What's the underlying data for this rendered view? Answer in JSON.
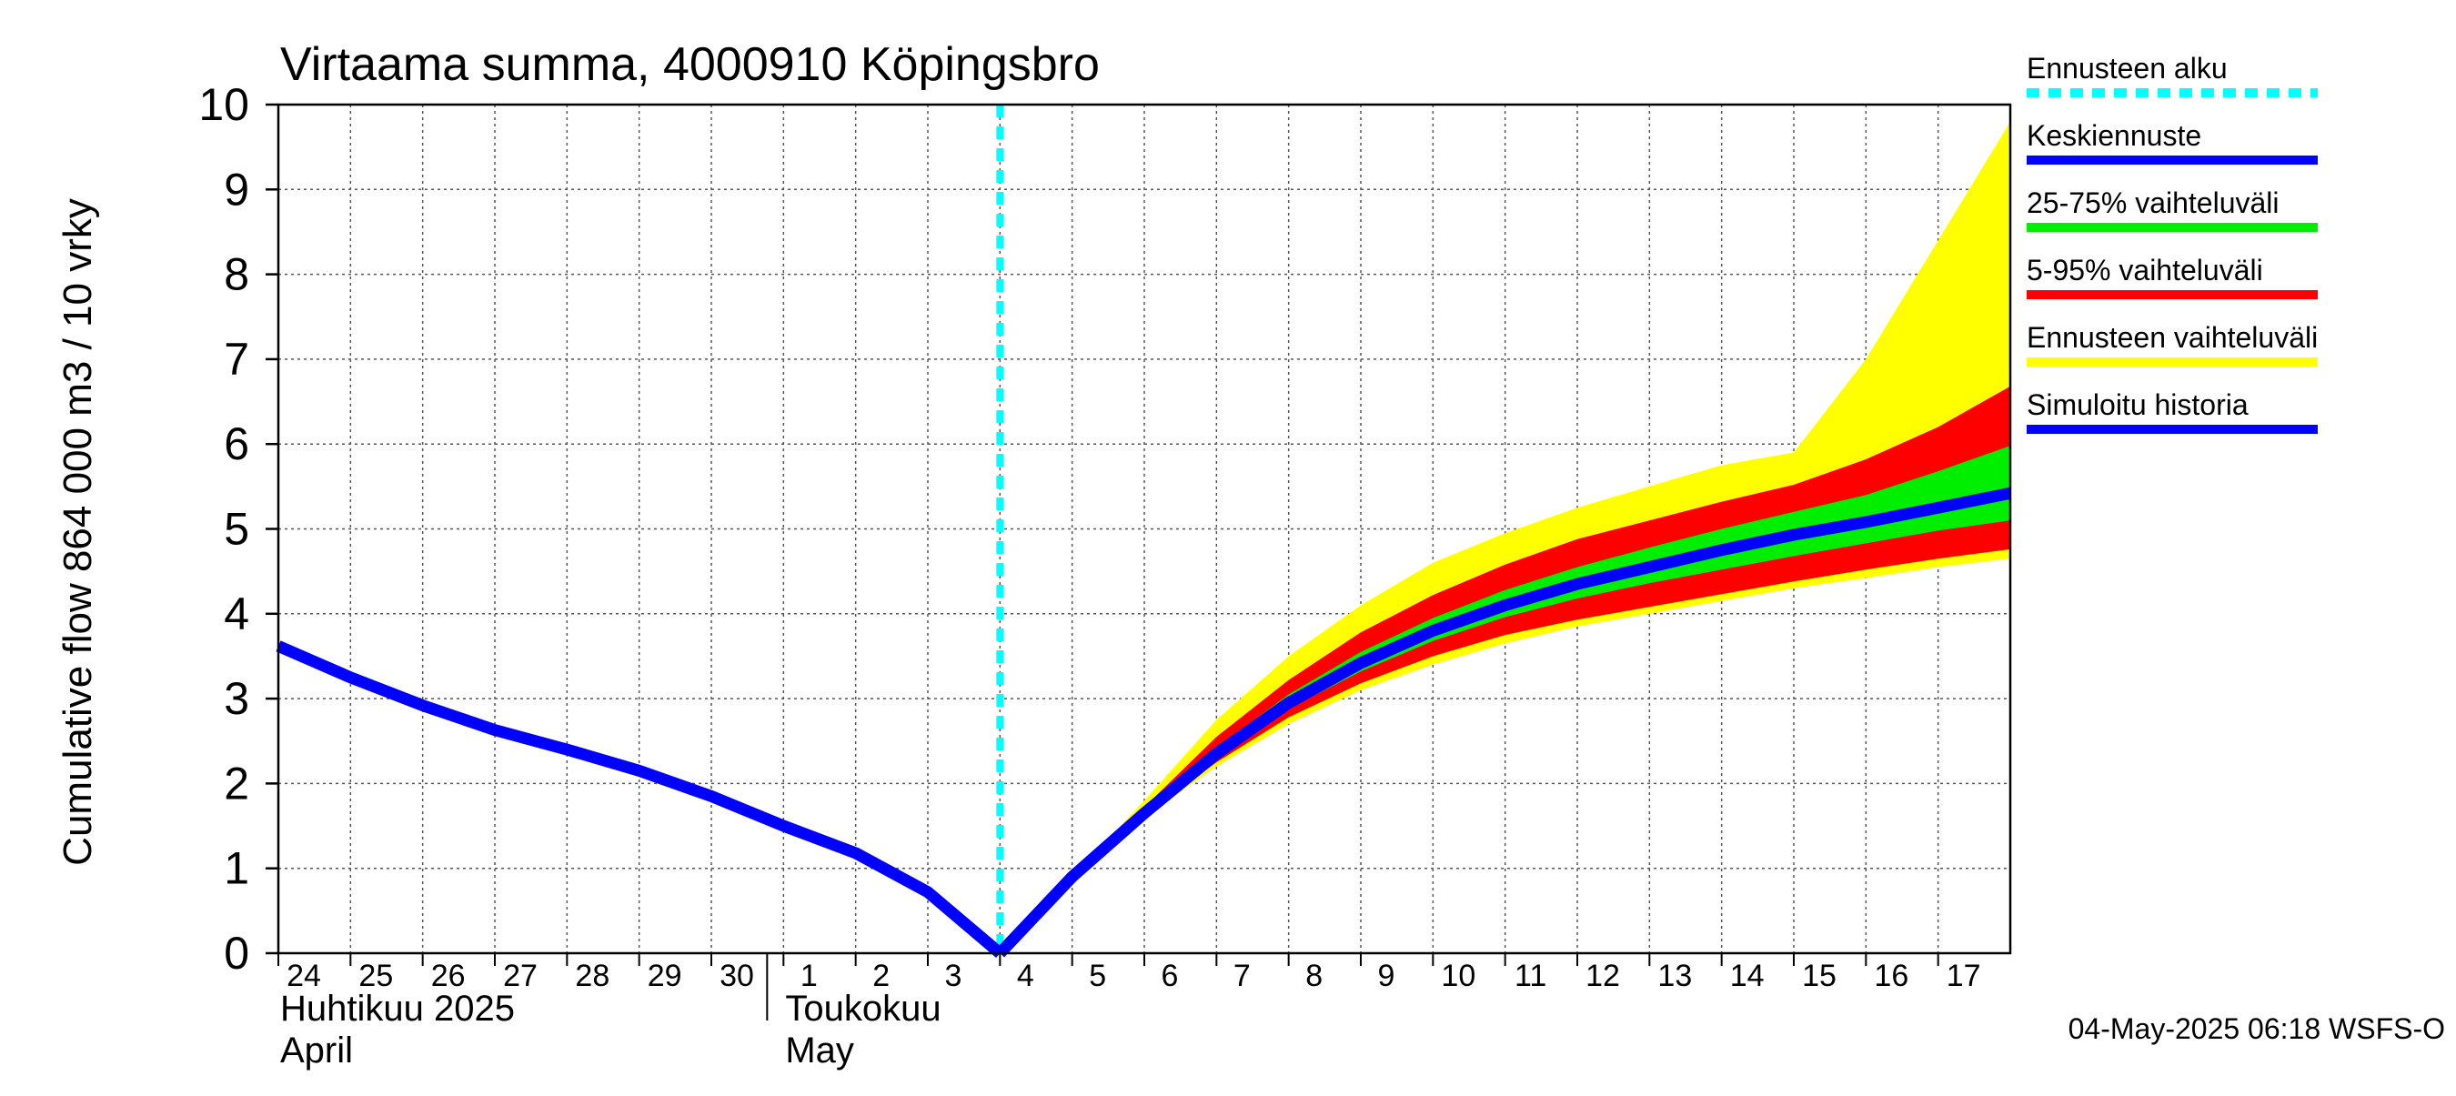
{
  "chart_data": {
    "type": "area",
    "title": "Virtaama summa, 4000910 Köpingsbro",
    "ylabel": "Cumulative flow    864 000 m3 / 10 vrky",
    "ylim": [
      0,
      10
    ],
    "yticks": [
      "0",
      "1",
      "2",
      "3",
      "4",
      "5",
      "6",
      "7",
      "8",
      "9",
      "10"
    ],
    "x_start_date": "2025-04-24",
    "x_end_date": "2025-05-18",
    "xticks": [
      {
        "date": "2025-04-24",
        "label": "24"
      },
      {
        "date": "2025-04-25",
        "label": "25"
      },
      {
        "date": "2025-04-26",
        "label": "26"
      },
      {
        "date": "2025-04-27",
        "label": "27"
      },
      {
        "date": "2025-04-28",
        "label": "28"
      },
      {
        "date": "2025-04-29",
        "label": "29"
      },
      {
        "date": "2025-04-30",
        "label": "30"
      },
      {
        "date": "2025-05-01",
        "label": "1"
      },
      {
        "date": "2025-05-02",
        "label": "2"
      },
      {
        "date": "2025-05-03",
        "label": "3"
      },
      {
        "date": "2025-05-04",
        "label": "4"
      },
      {
        "date": "2025-05-05",
        "label": "5"
      },
      {
        "date": "2025-05-06",
        "label": "6"
      },
      {
        "date": "2025-05-07",
        "label": "7"
      },
      {
        "date": "2025-05-08",
        "label": "8"
      },
      {
        "date": "2025-05-09",
        "label": "9"
      },
      {
        "date": "2025-05-10",
        "label": "10"
      },
      {
        "date": "2025-05-11",
        "label": "11"
      },
      {
        "date": "2025-05-12",
        "label": "12"
      },
      {
        "date": "2025-05-13",
        "label": "13"
      },
      {
        "date": "2025-05-14",
        "label": "14"
      },
      {
        "date": "2025-05-15",
        "label": "15"
      },
      {
        "date": "2025-05-16",
        "label": "16"
      },
      {
        "date": "2025-05-17",
        "label": "17"
      }
    ],
    "month_labels": [
      {
        "date": "2025-04-24",
        "line1": "Huhtikuu  2025",
        "line2": "April"
      },
      {
        "date": "2025-05-01",
        "line1": "Toukokuu",
        "line2": "May"
      }
    ],
    "forecast_start": "2025-05-04 00:00",
    "series": [
      {
        "name": "Simuloitu historia",
        "color": "#0000ff",
        "points": [
          [
            "2025-04-24 00:00",
            3.62
          ],
          [
            "2025-04-25 00:00",
            3.25
          ],
          [
            "2025-04-26 00:00",
            2.92
          ],
          [
            "2025-04-27 00:00",
            2.63
          ],
          [
            "2025-04-28 00:00",
            2.4
          ],
          [
            "2025-04-29 00:00",
            2.15
          ],
          [
            "2025-04-30 00:00",
            1.85
          ],
          [
            "2025-05-01 00:00",
            1.5
          ],
          [
            "2025-05-02 00:00",
            1.18
          ],
          [
            "2025-05-03 00:00",
            0.72
          ],
          [
            "2025-05-04 00:00",
            0.0
          ]
        ]
      },
      {
        "name": "Keskiennuste",
        "color": "#0000ff",
        "points": [
          [
            "2025-05-04 00:00",
            0.0
          ],
          [
            "2025-05-05 00:00",
            0.9
          ],
          [
            "2025-05-06 00:00",
            1.65
          ],
          [
            "2025-05-07 00:00",
            2.35
          ],
          [
            "2025-05-08 00:00",
            2.95
          ],
          [
            "2025-05-09 00:00",
            3.42
          ],
          [
            "2025-05-10 00:00",
            3.8
          ],
          [
            "2025-05-11 00:00",
            4.1
          ],
          [
            "2025-05-12 00:00",
            4.35
          ],
          [
            "2025-05-13 00:00",
            4.55
          ],
          [
            "2025-05-14 00:00",
            4.75
          ],
          [
            "2025-05-15 00:00",
            4.93
          ],
          [
            "2025-05-16 00:00",
            5.08
          ],
          [
            "2025-05-17 00:00",
            5.25
          ],
          [
            "2025-05-18 00:00",
            5.42
          ]
        ]
      }
    ],
    "bands": [
      {
        "name": "Ennusteen vaihteluväli",
        "color": "#ffff00",
        "x": [
          "2025-05-04 00:00",
          "2025-05-05 00:00",
          "2025-05-06 00:00",
          "2025-05-07 00:00",
          "2025-05-08 00:00",
          "2025-05-09 00:00",
          "2025-05-10 00:00",
          "2025-05-11 00:00",
          "2025-05-12 00:00",
          "2025-05-13 00:00",
          "2025-05-14 00:00",
          "2025-05-15 00:00",
          "2025-05-16 00:00",
          "2025-05-17 00:00",
          "2025-05-18 00:00"
        ],
        "low": [
          0.0,
          0.9,
          1.6,
          2.2,
          2.7,
          3.1,
          3.4,
          3.65,
          3.85,
          4.0,
          4.15,
          4.3,
          4.42,
          4.55,
          4.65
        ],
        "high": [
          0.0,
          0.9,
          1.8,
          2.75,
          3.5,
          4.1,
          4.6,
          4.95,
          5.25,
          5.5,
          5.75,
          5.9,
          7.0,
          8.4,
          9.8
        ]
      },
      {
        "name": "5-95% vaihteluväli",
        "color": "#ff0000",
        "x": [
          "2025-05-04 00:00",
          "2025-05-05 00:00",
          "2025-05-06 00:00",
          "2025-05-07 00:00",
          "2025-05-08 00:00",
          "2025-05-09 00:00",
          "2025-05-10 00:00",
          "2025-05-11 00:00",
          "2025-05-12 00:00",
          "2025-05-13 00:00",
          "2025-05-14 00:00",
          "2025-05-15 00:00",
          "2025-05-16 00:00",
          "2025-05-17 00:00",
          "2025-05-18 00:00"
        ],
        "low": [
          0.0,
          0.9,
          1.62,
          2.25,
          2.78,
          3.18,
          3.5,
          3.75,
          3.93,
          4.08,
          4.23,
          4.38,
          4.52,
          4.65,
          4.76
        ],
        "high": [
          0.0,
          0.9,
          1.72,
          2.55,
          3.22,
          3.78,
          4.22,
          4.58,
          4.88,
          5.1,
          5.32,
          5.52,
          5.82,
          6.2,
          6.68
        ]
      },
      {
        "name": "25-75% vaihteluväli",
        "color": "#00ee00",
        "x": [
          "2025-05-04 00:00",
          "2025-05-05 00:00",
          "2025-05-06 00:00",
          "2025-05-07 00:00",
          "2025-05-08 00:00",
          "2025-05-09 00:00",
          "2025-05-10 00:00",
          "2025-05-11 00:00",
          "2025-05-12 00:00",
          "2025-05-13 00:00",
          "2025-05-14 00:00",
          "2025-05-15 00:00",
          "2025-05-16 00:00",
          "2025-05-17 00:00",
          "2025-05-18 00:00"
        ],
        "low": [
          0.0,
          0.9,
          1.64,
          2.32,
          2.88,
          3.32,
          3.68,
          3.96,
          4.18,
          4.36,
          4.52,
          4.68,
          4.83,
          4.98,
          5.1
        ],
        "high": [
          0.0,
          0.9,
          1.68,
          2.42,
          3.05,
          3.55,
          3.95,
          4.28,
          4.55,
          4.78,
          5.0,
          5.2,
          5.4,
          5.68,
          5.98
        ]
      }
    ],
    "legend": {
      "placement": "right",
      "entries": [
        {
          "label": "Ennusteen alku",
          "color": "#00ffff",
          "style": "dashed"
        },
        {
          "label": "Keskiennuste",
          "color": "#0000ff",
          "style": "solid"
        },
        {
          "label": "25-75% vaihteluväli",
          "color": "#00ee00",
          "style": "solid"
        },
        {
          "label": "5-95% vaihteluväli",
          "color": "#ff0000",
          "style": "solid"
        },
        {
          "label": "Ennusteen vaihteluväli",
          "color": "#ffff00",
          "style": "solid"
        },
        {
          "label": "Simuloitu historia",
          "color": "#0000ff",
          "style": "solid"
        }
      ]
    },
    "grid": true,
    "footer": "04-May-2025 06:18 WSFS-O"
  }
}
